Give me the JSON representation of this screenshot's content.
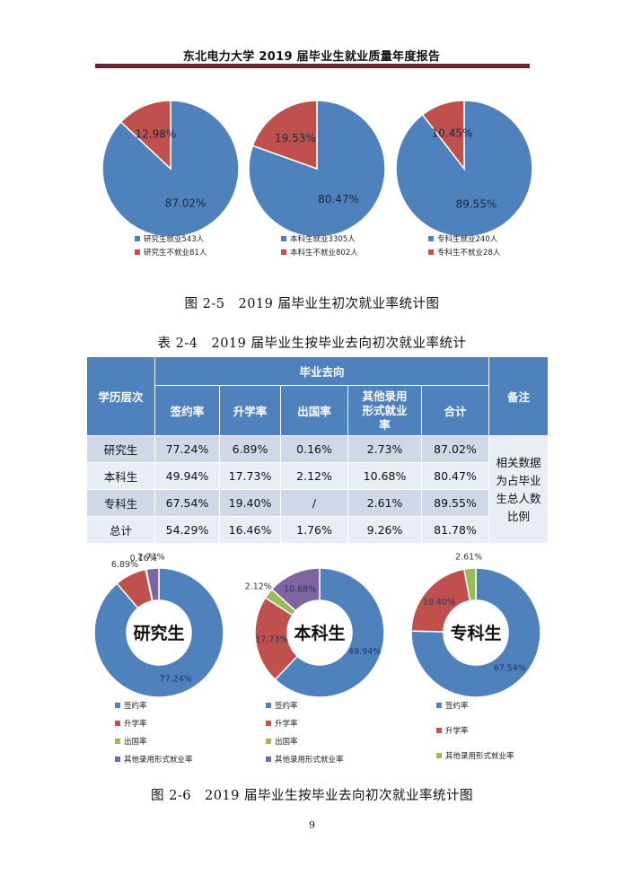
{
  "header": {
    "title": "东北电力大学 2019 届毕业生就业质量年度报告"
  },
  "figure_1": {
    "caption": "图 2-5　2019 届毕业生初次就业率统计图"
  },
  "table": {
    "caption": "表 2-4　2019 届毕业生按毕业去向初次就业率统计",
    "header_level": "学历层次",
    "header_group": "毕业去向",
    "header_note": "备注",
    "columns": [
      "签约率",
      "升学率",
      "出国率",
      "其他录用形式就业率",
      "合计"
    ],
    "rows": [
      {
        "label": "研究生",
        "cells": [
          "77.24%",
          "6.89%",
          "0.16%",
          "2.73%",
          "87.02%"
        ]
      },
      {
        "label": "本科生",
        "cells": [
          "49.94%",
          "17.73%",
          "2.12%",
          "10.68%",
          "80.47%"
        ]
      },
      {
        "label": "专科生",
        "cells": [
          "67.54%",
          "19.40%",
          "/",
          "2.61%",
          "89.55%"
        ]
      },
      {
        "label": "总计",
        "cells": [
          "54.29%",
          "16.46%",
          "1.76%",
          "9.26%",
          "81.78%"
        ]
      }
    ],
    "note": "相关数据为占毕业生总人数比例"
  },
  "figure_2": {
    "caption": "图 2-6　2019 届毕业生按毕业去向初次就业率统计图"
  },
  "page_number": "9",
  "chart_data": [
    {
      "type": "pie",
      "labels": [
        "研究生就业543人",
        "研究生不就业81人"
      ],
      "values": [
        87.02,
        12.98
      ],
      "data_labels": [
        "87.02%",
        "12.98%"
      ],
      "colors": [
        "#4f81bd",
        "#c0504d"
      ],
      "legend": "bottom"
    },
    {
      "type": "pie",
      "labels": [
        "本科生就业3305人",
        "本科生不就业802人"
      ],
      "values": [
        80.47,
        19.53
      ],
      "data_labels": [
        "80.47%",
        "19.53%"
      ],
      "colors": [
        "#4f81bd",
        "#c0504d"
      ],
      "legend": "bottom"
    },
    {
      "type": "pie",
      "labels": [
        "专科生就业240人",
        "专科生不就业28人"
      ],
      "values": [
        89.55,
        10.45
      ],
      "data_labels": [
        "89.55%",
        "10.45%"
      ],
      "colors": [
        "#4f81bd",
        "#c0504d"
      ],
      "legend": "bottom"
    },
    {
      "type": "donut",
      "center_label": "研究生",
      "labels": [
        "签约率",
        "升学率",
        "出国率",
        "其他录用形式就业率"
      ],
      "values": [
        77.24,
        6.89,
        0.16,
        2.73
      ],
      "data_labels": [
        "77.24%",
        "6.89%",
        "0.16%",
        "2.73%"
      ],
      "colors": [
        "#4f81bd",
        "#c0504d",
        "#9bbb59",
        "#8064a2"
      ],
      "legend": "bottom"
    },
    {
      "type": "donut",
      "center_label": "本科生",
      "labels": [
        "签约率",
        "升学率",
        "出国率",
        "其他录用形式就业率"
      ],
      "values": [
        49.94,
        17.73,
        2.12,
        10.68
      ],
      "data_labels": [
        "49.94%",
        "17.73%",
        "2.12%",
        "10.68%"
      ],
      "colors": [
        "#4f81bd",
        "#c0504d",
        "#9bbb59",
        "#8064a2"
      ],
      "legend": "bottom"
    },
    {
      "type": "donut",
      "center_label": "专科生",
      "labels": [
        "签约率",
        "升学率",
        "其他录用形式就业率"
      ],
      "values": [
        67.54,
        19.4,
        2.61
      ],
      "data_labels": [
        "67.54%",
        "19.40%",
        "2.61%"
      ],
      "colors": [
        "#4f81bd",
        "#c0504d",
        "#9bbb59"
      ],
      "legend": "bottom"
    }
  ]
}
